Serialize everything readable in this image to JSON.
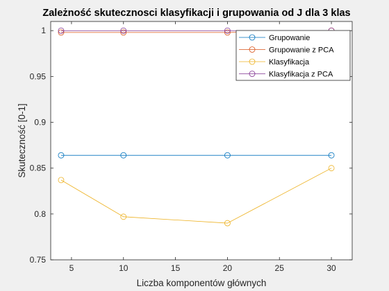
{
  "chart_data": {
    "type": "line",
    "title": "Zależność skutecznosci klasyfikacji i grupowania od J dla 3 klas",
    "xlabel": "Liczba komponentów głównych",
    "ylabel": "Skuteczność [0-1]",
    "xlim": [
      3,
      32
    ],
    "ylim": [
      0.75,
      1.01
    ],
    "xticks": [
      5,
      10,
      15,
      20,
      25,
      30
    ],
    "yticks": [
      0.75,
      0.8,
      0.85,
      0.9,
      0.95,
      1
    ],
    "ytick_labels": [
      "0.75",
      "0.8",
      "0.85",
      "0.9",
      "0.95",
      "1"
    ],
    "grid": false,
    "legend_position": "top-right",
    "x": [
      4,
      10,
      20,
      30
    ],
    "series": [
      {
        "name": "Grupowanie",
        "color": "#0072BD",
        "values": [
          0.864,
          0.864,
          0.864,
          0.864
        ]
      },
      {
        "name": "Grupowanie z PCA",
        "color": "#D95319",
        "values": [
          0.998,
          0.998,
          0.998,
          1.0
        ]
      },
      {
        "name": "Klasyfikacja",
        "color": "#EDB120",
        "values": [
          0.837,
          0.797,
          0.79,
          0.85
        ]
      },
      {
        "name": "Klasyfikacja z PCA",
        "color": "#7E2F8E",
        "values": [
          1.0,
          1.0,
          1.0,
          1.0
        ]
      }
    ]
  }
}
